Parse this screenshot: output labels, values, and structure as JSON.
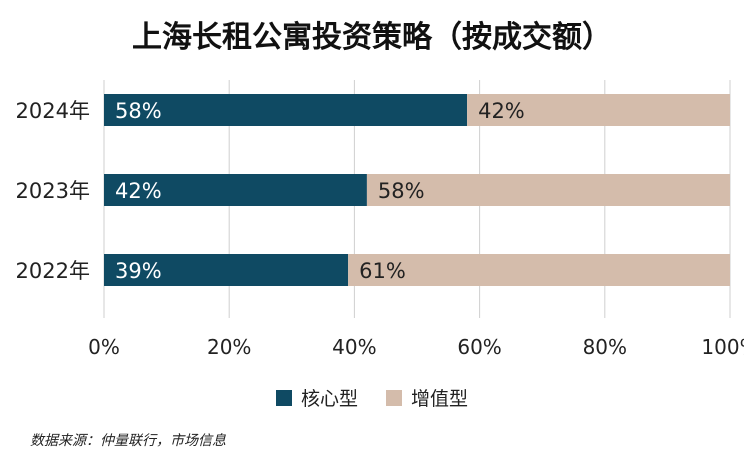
{
  "title": "上海长租公寓投资策略（按成交额）",
  "source": "数据来源：仲量联行，市场信息",
  "colors": {
    "core": "#0f4a63",
    "value_add": "#d4bcab",
    "grid": "#cfcfcf"
  },
  "chart_data": {
    "type": "bar",
    "orientation": "horizontal",
    "stacked": true,
    "categories": [
      "2024年",
      "2023年",
      "2022年"
    ],
    "series": [
      {
        "name": "核心型",
        "values": [
          58,
          42,
          39
        ],
        "labels": [
          "58%",
          "42%",
          "39%"
        ]
      },
      {
        "name": "增值型",
        "values": [
          42,
          58,
          61
        ],
        "labels": [
          "42%",
          "58%",
          "61%"
        ]
      }
    ],
    "xlim": [
      0,
      100
    ],
    "xticks": [
      "0%",
      "20%",
      "40%",
      "60%",
      "80%",
      "100%"
    ],
    "grid": true,
    "legend_position": "bottom"
  }
}
